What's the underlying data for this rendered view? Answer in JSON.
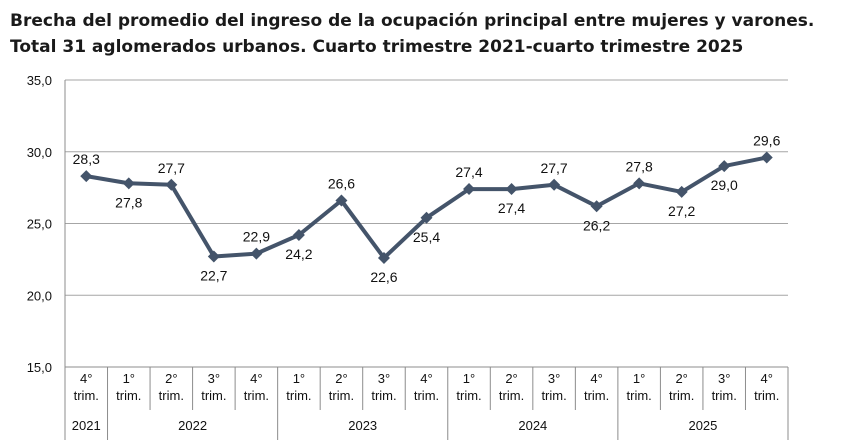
{
  "header": {
    "title_line1": "Brecha del promedio del ingreso de la ocupación principal entre mujeres y varones.",
    "title_line2": "Total 31 aglomerados urbanos. Cuarto trimestre 2021-cuarto trimestre 2025"
  },
  "chart_data": {
    "type": "line",
    "title": "Brecha del promedio del ingreso de la ocupación principal entre mujeres y varones. Total 31 aglomerados urbanos. Cuarto trimestre 2021-cuarto trimestre 2025",
    "xlabel": "",
    "ylabel": "",
    "ylim": [
      15,
      35
    ],
    "yticks": [
      "15,0",
      "20,0",
      "25,0",
      "30,0",
      "35,0"
    ],
    "grid": true,
    "legend": "none",
    "line_color": "#44546a",
    "categories": [
      {
        "q1": "4°",
        "q2": "trim."
      },
      {
        "q1": "1°",
        "q2": "trim."
      },
      {
        "q1": "2°",
        "q2": "trim."
      },
      {
        "q1": "3°",
        "q2": "trim."
      },
      {
        "q1": "4°",
        "q2": "trim."
      },
      {
        "q1": "1°",
        "q2": "trim."
      },
      {
        "q1": "2°",
        "q2": "trim."
      },
      {
        "q1": "3°",
        "q2": "trim."
      },
      {
        "q1": "4°",
        "q2": "trim."
      },
      {
        "q1": "1°",
        "q2": "trim."
      },
      {
        "q1": "2°",
        "q2": "trim."
      },
      {
        "q1": "3°",
        "q2": "trim."
      },
      {
        "q1": "4°",
        "q2": "trim."
      },
      {
        "q1": "1°",
        "q2": "trim."
      },
      {
        "q1": "2°",
        "q2": "trim."
      },
      {
        "q1": "3°",
        "q2": "trim."
      },
      {
        "q1": "4°",
        "q2": "trim."
      }
    ],
    "years": [
      {
        "label": "2021",
        "count": 1
      },
      {
        "label": "2022",
        "count": 4
      },
      {
        "label": "2023",
        "count": 4
      },
      {
        "label": "2024",
        "count": 4
      },
      {
        "label": "2025",
        "count": 4
      }
    ],
    "values": [
      28.3,
      27.8,
      27.7,
      22.7,
      22.9,
      24.2,
      26.6,
      22.6,
      25.4,
      27.4,
      27.4,
      27.7,
      26.2,
      27.8,
      27.2,
      29.0,
      29.6
    ],
    "value_labels": [
      "28,3",
      "27,8",
      "27,7",
      "22,7",
      "22,9",
      "24,2",
      "26,6",
      "22,6",
      "25,4",
      "27,4",
      "27,4",
      "27,7",
      "26,2",
      "27,8",
      "27,2",
      "29,0",
      "29,6"
    ]
  }
}
